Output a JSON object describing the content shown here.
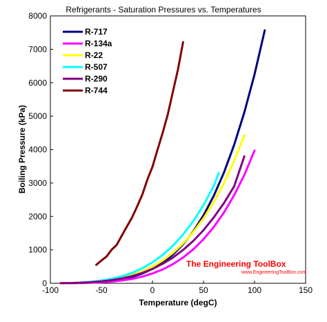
{
  "chart_data": {
    "type": "line",
    "title": "Refrigerants - Saturation Pressures vs. Temperatures",
    "xlabel": "Temperature (degC)",
    "ylabel": "Boiling Pressure (kPa)",
    "xlim": [
      -100,
      150
    ],
    "ylim": [
      0,
      8000
    ],
    "xticks": [
      "-100",
      "-50",
      "0",
      "50",
      "100",
      "150"
    ],
    "yticks": [
      "0",
      "1000",
      "2000",
      "3000",
      "4000",
      "5000",
      "6000",
      "7000",
      "8000"
    ],
    "grid": false,
    "legend_position": "top-left",
    "series": [
      {
        "name": "R-717",
        "color": "#000080",
        "points": [
          [
            -77,
            6
          ],
          [
            -60,
            22
          ],
          [
            -50,
            41
          ],
          [
            -40,
            72
          ],
          [
            -30,
            120
          ],
          [
            -20,
            190
          ],
          [
            -10,
            291
          ],
          [
            0,
            430
          ],
          [
            10,
            615
          ],
          [
            20,
            857
          ],
          [
            30,
            1167
          ],
          [
            40,
            1555
          ],
          [
            50,
            2033
          ],
          [
            60,
            2614
          ],
          [
            70,
            3312
          ],
          [
            80,
            4141
          ],
          [
            90,
            5116
          ],
          [
            100,
            6253
          ],
          [
            110,
            7570
          ]
        ]
      },
      {
        "name": "R-134a",
        "color": "#ff00ff",
        "points": [
          [
            -90,
            3
          ],
          [
            -80,
            4
          ],
          [
            -70,
            8
          ],
          [
            -60,
            16
          ],
          [
            -50,
            30
          ],
          [
            -40,
            52
          ],
          [
            -30,
            85
          ],
          [
            -20,
            133
          ],
          [
            -10,
            201
          ],
          [
            0,
            293
          ],
          [
            10,
            415
          ],
          [
            20,
            572
          ],
          [
            30,
            770
          ],
          [
            40,
            1017
          ],
          [
            50,
            1318
          ],
          [
            60,
            1682
          ],
          [
            70,
            2117
          ],
          [
            80,
            2633
          ],
          [
            90,
            3244
          ],
          [
            100,
            3972
          ]
        ]
      },
      {
        "name": "R-22",
        "color": "#ffff00",
        "points": [
          [
            -90,
            5
          ],
          [
            -80,
            10
          ],
          [
            -70,
            21
          ],
          [
            -60,
            38
          ],
          [
            -50,
            65
          ],
          [
            -40,
            105
          ],
          [
            -30,
            164
          ],
          [
            -20,
            245
          ],
          [
            -10,
            355
          ],
          [
            0,
            498
          ],
          [
            10,
            681
          ],
          [
            20,
            910
          ],
          [
            30,
            1192
          ],
          [
            40,
            1534
          ],
          [
            50,
            1943
          ],
          [
            60,
            2427
          ],
          [
            70,
            2995
          ],
          [
            80,
            3658
          ],
          [
            90,
            4430
          ]
        ]
      },
      {
        "name": "R-507",
        "color": "#00ffff",
        "points": [
          [
            -70,
            25
          ],
          [
            -60,
            46
          ],
          [
            -50,
            82
          ],
          [
            -40,
            134
          ],
          [
            -30,
            210
          ],
          [
            -20,
            313
          ],
          [
            -10,
            450
          ],
          [
            0,
            627
          ],
          [
            10,
            850
          ],
          [
            20,
            1125
          ],
          [
            30,
            1460
          ],
          [
            40,
            1862
          ],
          [
            50,
            2340
          ],
          [
            60,
            2910
          ],
          [
            65,
            3300
          ]
        ]
      },
      {
        "name": "R-290",
        "color": "#800080",
        "points": [
          [
            -90,
            5
          ],
          [
            -80,
            9
          ],
          [
            -70,
            18
          ],
          [
            -60,
            33
          ],
          [
            -50,
            58
          ],
          [
            -40,
            93
          ],
          [
            -30,
            145
          ],
          [
            -20,
            216
          ],
          [
            -10,
            310
          ],
          [
            0,
            430
          ],
          [
            10,
            582
          ],
          [
            20,
            770
          ],
          [
            30,
            999
          ],
          [
            40,
            1270
          ],
          [
            50,
            1590
          ],
          [
            60,
            1970
          ],
          [
            70,
            2400
          ],
          [
            80,
            2900
          ],
          [
            90,
            3800
          ]
        ]
      },
      {
        "name": "R-744",
        "color": "#800000",
        "points": [
          [
            -55,
            554
          ],
          [
            -50,
            682
          ],
          [
            -45,
            800
          ],
          [
            -40,
            1005
          ],
          [
            -35,
            1150
          ],
          [
            -30,
            1428
          ],
          [
            -25,
            1700
          ],
          [
            -20,
            1969
          ],
          [
            -15,
            2300
          ],
          [
            -10,
            2649
          ],
          [
            -5,
            3100
          ],
          [
            0,
            3485
          ],
          [
            5,
            4000
          ],
          [
            10,
            4502
          ],
          [
            15,
            5050
          ],
          [
            20,
            5729
          ],
          [
            25,
            6400
          ],
          [
            30,
            7214
          ]
        ]
      }
    ]
  },
  "watermark": {
    "main": "The Engineering ToolBox",
    "sub": "www.EngineeringToolBox.com",
    "color": "#ff0000"
  }
}
